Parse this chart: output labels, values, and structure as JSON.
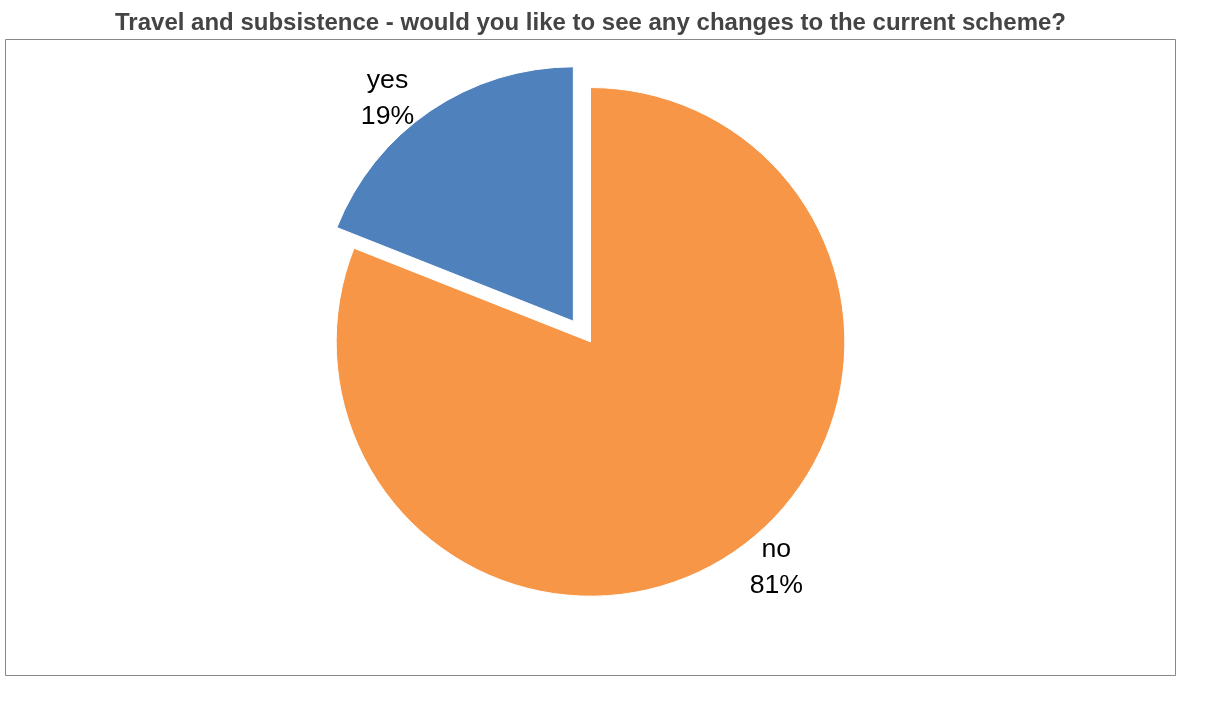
{
  "chart_data": {
    "type": "pie",
    "title": "Travel and subsistence - would you like to see any changes to the current scheme?",
    "categories": [
      "yes",
      "no"
    ],
    "values": [
      19,
      81
    ],
    "colors": [
      "#4f81bd",
      "#f79646"
    ],
    "value_labels": [
      "19%",
      "81%"
    ]
  }
}
